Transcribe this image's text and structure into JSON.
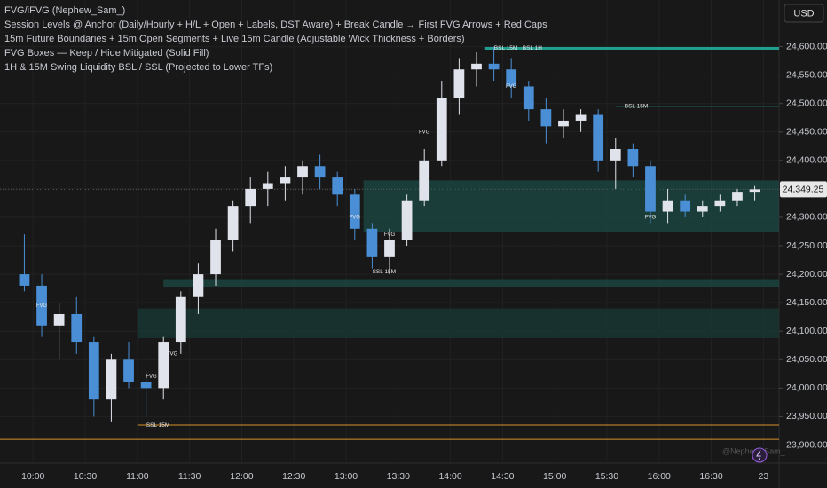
{
  "chart_data": {
    "type": "candlestick",
    "legend_lines": [
      "FVG/iFVG (Nephew_Sam_)",
      "Session Levels @ Anchor (Daily/Hourly + H/L + Open + Labels, DST Aware) + Break Candle → First FVG Arrows + Red Caps",
      "15m Future Boundaries + 15m Open Segments + Live 15m Candle (Adjustable Wick Thickness + Borders)",
      "FVG Boxes — Keep / Hide Mitigated (Solid Fill)",
      "1H & 15M Swing Liquidity BSL / SSL (Projected to Lower TFs)"
    ],
    "currency": "USD",
    "watermark": "@Nephew_Sam_",
    "up_color": "#e0e3eb",
    "down_color": "#4a8fd6",
    "x": [
      "09:50",
      "10:00",
      "10:10",
      "10:20",
      "10:30",
      "10:40",
      "10:50",
      "11:00",
      "11:10",
      "11:20",
      "11:30",
      "11:40",
      "11:50",
      "12:00",
      "12:10",
      "12:20",
      "12:30",
      "12:40",
      "12:50",
      "13:00",
      "13:10",
      "13:20",
      "13:30",
      "13:40",
      "13:50",
      "14:00",
      "14:10",
      "14:20",
      "14:30",
      "14:40",
      "14:50",
      "15:00",
      "15:10",
      "15:20",
      "15:30",
      "15:40",
      "15:50",
      "16:00",
      "16:10",
      "16:20",
      "16:30",
      "16:40",
      "16:50"
    ],
    "open": [
      24200,
      24180,
      24110,
      24130,
      24080,
      23980,
      24050,
      24010,
      24000,
      24080,
      24160,
      24200,
      24260,
      24320,
      24350,
      24360,
      24370,
      24390,
      24370,
      24340,
      24280,
      24230,
      24260,
      24330,
      24400,
      24510,
      24560,
      24570,
      24560,
      24530,
      24490,
      24460,
      24470,
      24480,
      24400,
      24420,
      24390,
      24310,
      24330,
      24310,
      24320,
      24330,
      24345
    ],
    "high": [
      24270,
      24200,
      24150,
      24160,
      24090,
      24060,
      24080,
      24030,
      24090,
      24170,
      24220,
      24280,
      24330,
      24370,
      24380,
      24390,
      24400,
      24410,
      24380,
      24350,
      24290,
      24280,
      24340,
      24420,
      24540,
      24580,
      24590,
      24600,
      24580,
      24540,
      24510,
      24490,
      24490,
      24490,
      24440,
      24430,
      24400,
      24350,
      24340,
      24330,
      24340,
      24350,
      24355
    ],
    "low": [
      24170,
      24090,
      24050,
      24060,
      23950,
      23940,
      24000,
      23950,
      23980,
      24060,
      24130,
      24180,
      24240,
      24290,
      24320,
      24330,
      24340,
      24350,
      24320,
      24260,
      24210,
      24200,
      24250,
      24320,
      24390,
      24480,
      24530,
      24540,
      24510,
      24470,
      24430,
      24440,
      24450,
      24380,
      24350,
      24370,
      24290,
      24290,
      24300,
      24300,
      24310,
      24320,
      24330
    ],
    "close": [
      24180,
      24110,
      24130,
      24080,
      23980,
      24050,
      24010,
      24000,
      24080,
      24160,
      24200,
      24260,
      24320,
      24350,
      24360,
      24370,
      24390,
      24370,
      24340,
      24280,
      24230,
      24260,
      24330,
      24400,
      24510,
      24560,
      24570,
      24560,
      24530,
      24490,
      24460,
      24470,
      24480,
      24400,
      24420,
      24390,
      24310,
      24330,
      24310,
      24320,
      24330,
      24345,
      24349.25
    ],
    "last_price": {
      "value": 24349.25,
      "label": "24,349.25"
    },
    "levels": [
      {
        "value": 24597,
        "start": "14:20",
        "color": "#1f9e8e",
        "width": 3,
        "labels": [
          "BSL 15M",
          "BSL 1H"
        ]
      },
      {
        "value": 24495,
        "start": "15:35",
        "color": "#1f7a70",
        "width": 1,
        "labels": [
          "BSL 15M"
        ]
      },
      {
        "value": 24204,
        "start": "13:10",
        "color": "#d9912a",
        "width": 1,
        "labels": [
          "SSL 15M"
        ]
      },
      {
        "value": 23935,
        "start": "11:00",
        "color": "#d9912a",
        "width": 1,
        "labels": [
          "SSL 15M"
        ]
      },
      {
        "value": 23910,
        "start": "09:41",
        "color": "#d9912a",
        "width": 1
      }
    ],
    "zones": [
      {
        "low": 24275,
        "high": 24365,
        "start": "13:10",
        "color": "#1b4a44"
      },
      {
        "low": 24178,
        "high": 24190,
        "start": "11:15",
        "color": "#1b4a44"
      },
      {
        "low": 24088,
        "high": 24140,
        "start": "11:00",
        "color": "#183a36"
      }
    ],
    "fvg_labels": [
      {
        "text": "FVG",
        "x": "10:05",
        "y": 24145
      },
      {
        "text": "FVG",
        "x": "11:08",
        "y": 24020
      },
      {
        "text": "FVG",
        "x": "11:20",
        "y": 24060
      },
      {
        "text": "FVG",
        "x": "13:05",
        "y": 24300
      },
      {
        "text": "FVG",
        "x": "13:25",
        "y": 24270
      },
      {
        "text": "FVG",
        "x": "13:45",
        "y": 24450
      },
      {
        "text": "FVG",
        "x": "14:35",
        "y": 24530
      },
      {
        "text": "FVG",
        "x": "15:55",
        "y": 24300
      }
    ],
    "xlim": [
      "09:41",
      "17:09"
    ],
    "xticks": [
      "10:00",
      "10:30",
      "11:00",
      "11:30",
      "12:00",
      "12:30",
      "13:00",
      "13:30",
      "14:00",
      "14:30",
      "15:00",
      "15:30",
      "16:00",
      "16:30",
      {
        "value": "17:00",
        "label": "23"
      }
    ],
    "ylim": [
      23868,
      24682
    ],
    "yticks": [
      {
        "value": 23900,
        "label": "23,900.00"
      },
      {
        "value": 23950,
        "label": "23,950.00"
      },
      {
        "value": 24000,
        "label": "24,000.00"
      },
      {
        "value": 24050,
        "label": "24,050.00"
      },
      {
        "value": 24100,
        "label": "24,100.00"
      },
      {
        "value": 24150,
        "label": "24,150.00"
      },
      {
        "value": 24200,
        "label": "24,200.00"
      },
      {
        "value": 24250,
        "label": "24,250.00"
      },
      {
        "value": 24300,
        "label": "24,300.00"
      },
      {
        "value": 24350,
        "label": "24,350.00"
      },
      {
        "value": 24400,
        "label": "24,400.00"
      },
      {
        "value": 24450,
        "label": "24,450.00"
      },
      {
        "value": 24500,
        "label": "24,500.00"
      },
      {
        "value": 24550,
        "label": "24,550.00"
      },
      {
        "value": 24600,
        "label": "24,600.00"
      }
    ],
    "grid": true
  }
}
